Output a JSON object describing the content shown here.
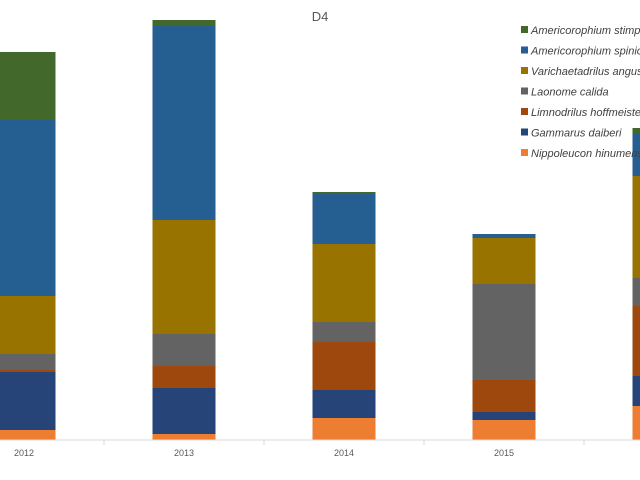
{
  "chart_data": {
    "type": "bar",
    "stacked": true,
    "title": "D4",
    "xlabel": "",
    "ylabel": "",
    "categories": [
      "2012",
      "2013",
      "2014",
      "2015",
      ""
    ],
    "ylim": [
      0,
      100
    ],
    "grid": false,
    "legend_position": "top-right",
    "series": [
      {
        "name": "Nippoleucon hinumensis",
        "color": "#ED7D31",
        "values": [
          2.5,
          1.5,
          5.5,
          5.0,
          8.5
        ]
      },
      {
        "name": "Gammarus daiberi",
        "color": "#264478",
        "values": [
          14.5,
          11.5,
          7.0,
          2.0,
          7.5
        ]
      },
      {
        "name": "Limnodrilus hoffmeisteri",
        "color": "#9E480E",
        "values": [
          0.5,
          5.5,
          12.0,
          8.0,
          17.5
        ]
      },
      {
        "name": "Laonome calida",
        "color": "#636363",
        "values": [
          4.0,
          8.0,
          5.0,
          24.0,
          7.0
        ]
      },
      {
        "name": "Varichaetadrilus angustipenis",
        "color": "#997300",
        "values": [
          14.5,
          28.5,
          19.5,
          11.5,
          25.5
        ]
      },
      {
        "name": "Americorophium spinicorne",
        "color": "#255E91",
        "values": [
          44.0,
          48.5,
          12.5,
          1.0,
          10.5
        ]
      },
      {
        "name": "Americorophium stimpsoni",
        "color": "#43682B",
        "values": [
          17.0,
          1.5,
          0.5,
          0,
          1.5
        ]
      }
    ]
  }
}
